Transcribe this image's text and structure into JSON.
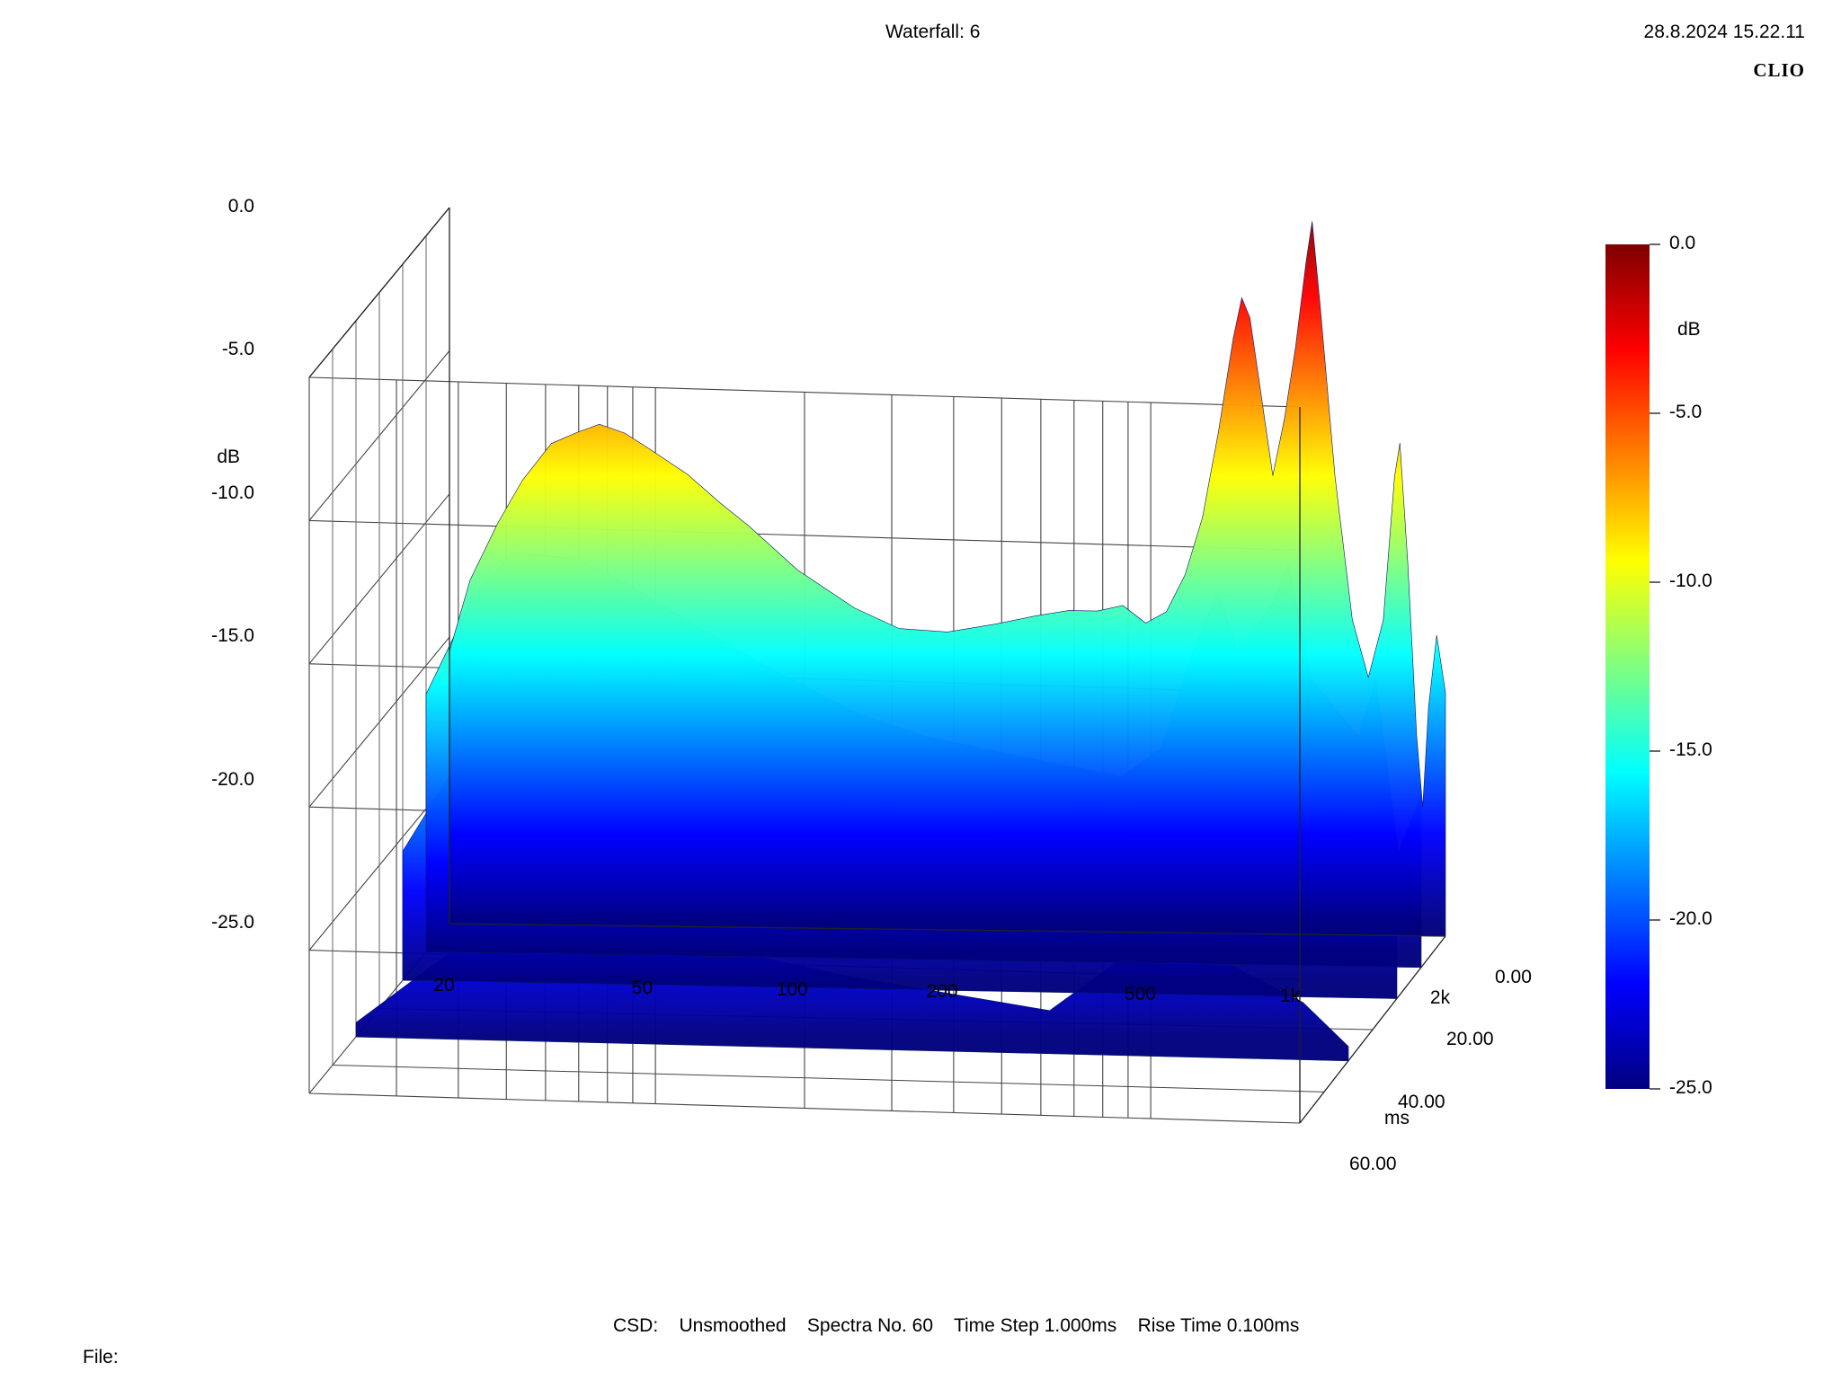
{
  "header": {
    "title": "Waterfall: 6",
    "timestamp": "28.8.2024 15.22.11",
    "brand": "CLIO"
  },
  "footer": {
    "settings": "CSD:    Unsmoothed    Spectra No. 60    Time Step 1.000ms    Rise Time 0.100ms",
    "file_label": "File:"
  },
  "chart_data": {
    "type": "waterfall",
    "title": "Waterfall: 6",
    "x_axis": {
      "label": "",
      "scale": "log",
      "range": [
        20,
        2000
      ],
      "ticks": [
        20,
        50,
        100,
        200,
        500,
        1000,
        2000
      ],
      "tick_labels": [
        "20",
        "50",
        "100",
        "200",
        "500",
        "1k",
        "2k"
      ]
    },
    "y_axis": {
      "label": "dB",
      "range": [
        -25,
        0
      ],
      "ticks": [
        0,
        -5,
        -10,
        -15,
        -20,
        -25
      ],
      "tick_labels": [
        "0.0",
        "-5.0",
        "-10.0",
        "-15.0",
        "-20.0",
        "-25.0"
      ]
    },
    "z_axis": {
      "label": "ms",
      "range": [
        0,
        60
      ],
      "ticks": [
        0,
        20,
        40,
        60
      ],
      "tick_labels": [
        "0.00",
        "20.00",
        "40.00",
        "60.00"
      ]
    },
    "colorbar": {
      "label": "dB",
      "range": [
        -25,
        0
      ],
      "ticks": [
        0,
        -5,
        -10,
        -15,
        -20,
        -25
      ],
      "tick_labels": [
        "0.0",
        "-5.0",
        "-10.0",
        "-15.0",
        "-20.0",
        "-25.0"
      ],
      "colors": [
        "#00007f",
        "#0000ff",
        "#0080ff",
        "#00ffff",
        "#80ff80",
        "#ffff00",
        "#ff8000",
        "#ff0000",
        "#7f0000"
      ]
    },
    "grid": true,
    "spectra_count": 60,
    "time_step_ms": 1.0,
    "rise_time_ms": 0.1,
    "series": [
      {
        "t_ms": 0,
        "points": [
          [
            20,
            -15.5
          ],
          [
            22,
            -13
          ],
          [
            25,
            -11
          ],
          [
            28,
            -9.5
          ],
          [
            32,
            -8.2
          ],
          [
            36,
            -7.8
          ],
          [
            40,
            -7.5
          ],
          [
            45,
            -7.8
          ],
          [
            50,
            -8.3
          ],
          [
            60,
            -9.2
          ],
          [
            70,
            -10.2
          ],
          [
            80,
            -11.0
          ],
          [
            100,
            -12.5
          ],
          [
            130,
            -13.8
          ],
          [
            160,
            -14.5
          ],
          [
            200,
            -14.6
          ],
          [
            250,
            -14.3
          ],
          [
            300,
            -14.0
          ],
          [
            350,
            -13.8
          ],
          [
            400,
            -13.8
          ],
          [
            450,
            -13.6
          ],
          [
            500,
            -14.2
          ],
          [
            550,
            -13.8
          ],
          [
            600,
            -12.5
          ],
          [
            650,
            -10.5
          ],
          [
            700,
            -7.5
          ],
          [
            750,
            -4.2
          ],
          [
            780,
            -2.8
          ],
          [
            810,
            -3.5
          ],
          [
            850,
            -6.0
          ],
          [
            900,
            -9.0
          ],
          [
            950,
            -7.0
          ],
          [
            1000,
            -4.5
          ],
          [
            1050,
            -1.5
          ],
          [
            1080,
            -0.1
          ],
          [
            1120,
            -3.0
          ],
          [
            1200,
            -9.0
          ],
          [
            1300,
            -14.0
          ],
          [
            1400,
            -16.0
          ],
          [
            1500,
            -14.0
          ],
          [
            1580,
            -9.0
          ],
          [
            1620,
            -7.8
          ],
          [
            1680,
            -12.0
          ],
          [
            1750,
            -18.0
          ],
          [
            1800,
            -20.5
          ],
          [
            1850,
            -17.0
          ],
          [
            1920,
            -14.5
          ],
          [
            2000,
            -16.5
          ]
        ]
      },
      {
        "t_ms": 10,
        "points": [
          [
            20,
            -16
          ],
          [
            25,
            -12.5
          ],
          [
            30,
            -11.0
          ],
          [
            40,
            -11.2
          ],
          [
            50,
            -12.0
          ],
          [
            70,
            -13.5
          ],
          [
            100,
            -15.0
          ],
          [
            150,
            -16.5
          ],
          [
            200,
            -17.2
          ],
          [
            300,
            -17.8
          ],
          [
            500,
            -18.5
          ],
          [
            600,
            -17.5
          ],
          [
            700,
            -14.0
          ],
          [
            780,
            -12.0
          ],
          [
            850,
            -14.0
          ],
          [
            1000,
            -12.5
          ],
          [
            1080,
            -11.0
          ],
          [
            1200,
            -15.0
          ],
          [
            1500,
            -17.0
          ],
          [
            1620,
            -15.0
          ],
          [
            1800,
            -21.0
          ],
          [
            2000,
            -19.0
          ]
        ]
      },
      {
        "t_ms": 20,
        "points": [
          [
            20,
            -20.5
          ],
          [
            30,
            -15.5
          ],
          [
            40,
            -15.0
          ],
          [
            50,
            -15.5
          ],
          [
            70,
            -16.5
          ],
          [
            100,
            -17.5
          ],
          [
            150,
            -18.5
          ],
          [
            200,
            -19.0
          ],
          [
            300,
            -19.5
          ],
          [
            500,
            -20.5
          ],
          [
            700,
            -18.0
          ],
          [
            780,
            -16.5
          ],
          [
            900,
            -18.0
          ],
          [
            1080,
            -16.0
          ],
          [
            1300,
            -19.5
          ],
          [
            1620,
            -19.0
          ],
          [
            2000,
            -22.0
          ]
        ]
      },
      {
        "t_ms": 40,
        "points": [
          [
            20,
            -24.5
          ],
          [
            40,
            -20.5
          ],
          [
            60,
            -20.5
          ],
          [
            100,
            -21.5
          ],
          [
            200,
            -22.5
          ],
          [
            500,
            -23.5
          ],
          [
            780,
            -21.0
          ],
          [
            1080,
            -21.5
          ],
          [
            1620,
            -23.0
          ],
          [
            2000,
            -24.5
          ]
        ]
      }
    ]
  }
}
